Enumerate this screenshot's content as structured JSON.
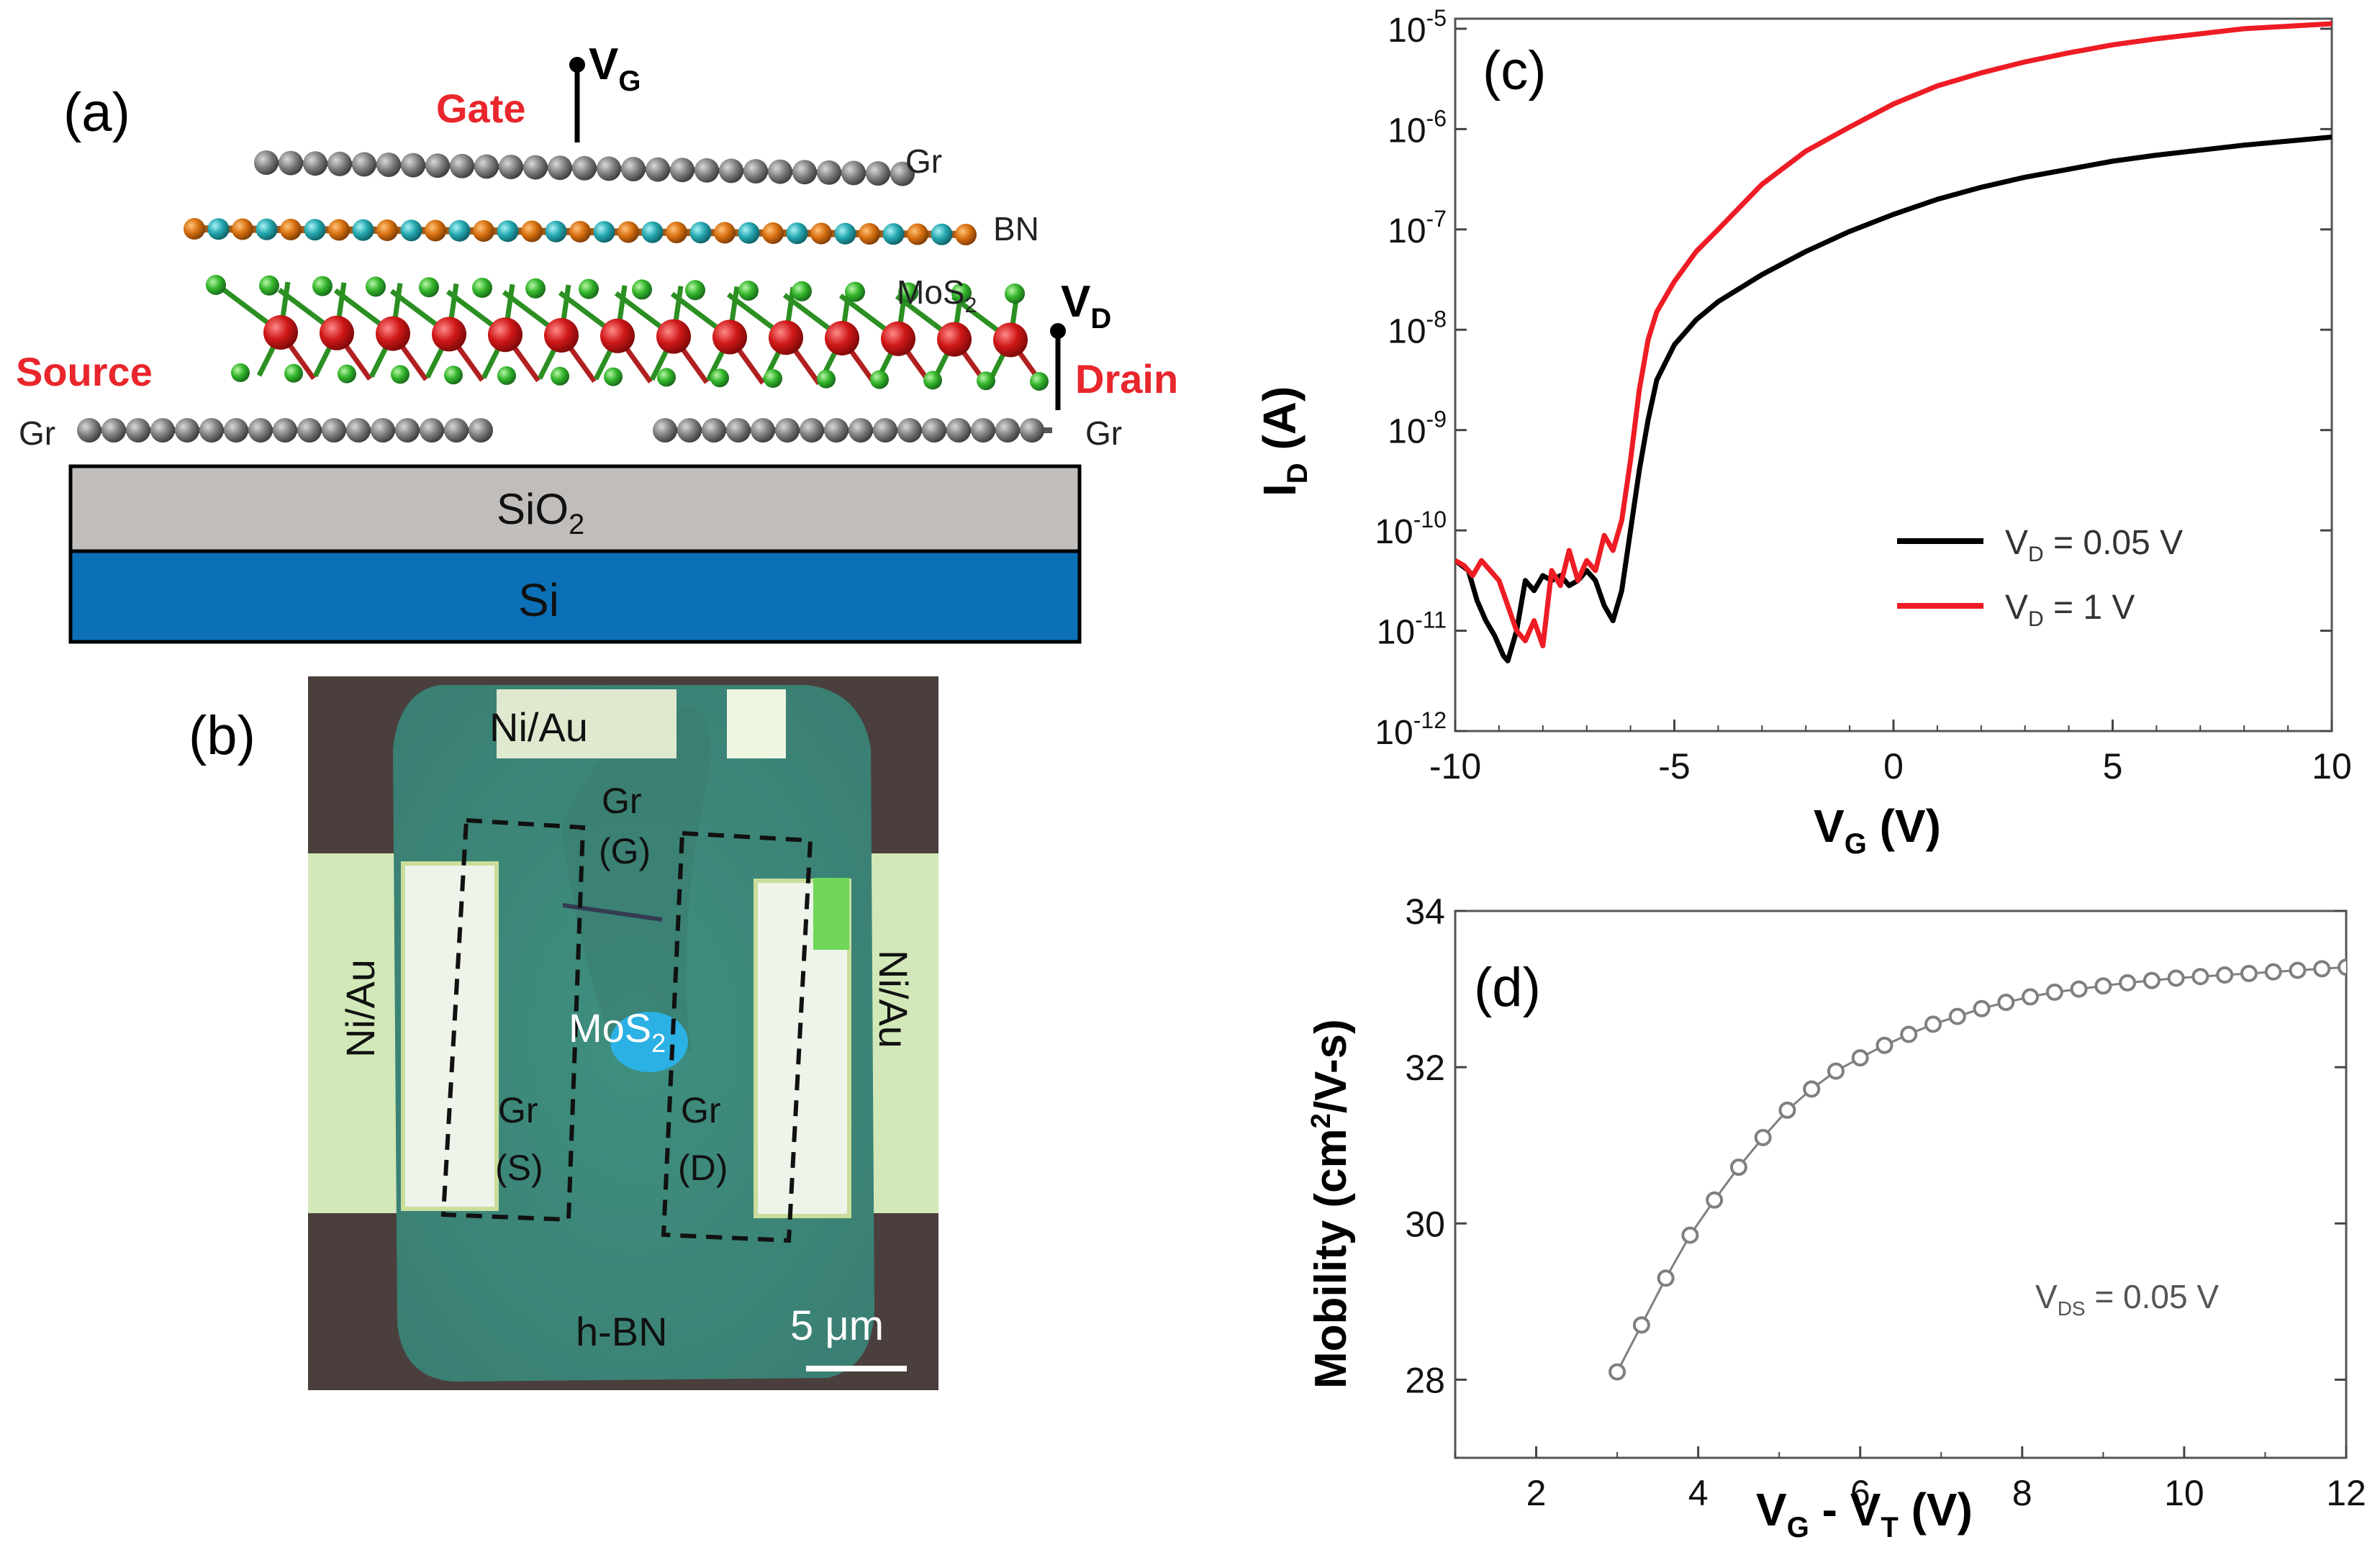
{
  "panel_labels": {
    "a": "(a)",
    "b": "(b)",
    "c": "(c)",
    "d": "(d)"
  },
  "panel_a": {
    "gate_label": "Gate",
    "vg_label": "V",
    "vg_sub": "G",
    "gr_top": "Gr",
    "bn": "BN",
    "mos2": "MoS",
    "mos2_sub": "2",
    "vd_label": "V",
    "vd_sub": "D",
    "source_label": "Source",
    "drain_label": "Drain",
    "gr_left": "Gr",
    "gr_right": "Gr",
    "sio2": "SiO",
    "sio2_sub": "2",
    "si": "Si",
    "colors": {
      "red_label": "#e8262b",
      "sio2": "#c0bdbb",
      "si": "#0b70b7",
      "mo": "#c41818",
      "s": "#2ea21f",
      "b": "#d0680f",
      "n": "#2aa0a8",
      "c": "#6d6d6d"
    }
  },
  "panel_b": {
    "niau_top": "Ni/Au",
    "niau_left": "Ni/Au",
    "niau_right": "Ni/Au",
    "gr_g_1": "Gr",
    "gr_g_2": "(G)",
    "gr_s_1": "Gr",
    "gr_s_2": "(S)",
    "gr_d_1": "Gr",
    "gr_d_2": "(D)",
    "mos2": "MoS",
    "mos2_sub": "2",
    "hbn": "h-BN",
    "scale": "5 μm"
  },
  "chart_data": [
    {
      "type": "line",
      "panel": "c",
      "title": "",
      "xlabel": "V_G (V)",
      "ylabel": "I_D (A)",
      "xlim": [
        -10,
        10
      ],
      "ylim_log10": [
        -12,
        -4.9
      ],
      "yscale": "log",
      "xticks": [
        -10,
        -5,
        0,
        5,
        10
      ],
      "xtick_labels": [
        "-10",
        "-5",
        "0",
        "5",
        "10"
      ],
      "yticks_exp": [
        -12,
        -11,
        -10,
        -9,
        -8,
        -7,
        -6,
        -5
      ],
      "ytick_base": "10",
      "ytick_exp_labels": [
        "-12",
        "-11",
        "-10",
        "-9",
        "-8",
        "-7",
        "-6",
        "-5"
      ],
      "legend_position": "center-right",
      "series": [
        {
          "name": "V_D = 0.05 V",
          "legend_main": "V",
          "legend_sub": "D",
          "legend_rest": " = 0.05 V",
          "color": "#000000",
          "x": [
            -10,
            -9.7,
            -9.5,
            -9.3,
            -9.1,
            -8.9,
            -8.8,
            -8.6,
            -8.4,
            -8.2,
            -8.0,
            -7.8,
            -7.6,
            -7.4,
            -7.2,
            -7.0,
            -6.8,
            -6.6,
            -6.4,
            -6.2,
            -6.0,
            -5.8,
            -5.6,
            -5.4,
            -5.0,
            -4.5,
            -4.0,
            -3.0,
            -2.0,
            -1.0,
            0,
            1,
            2,
            3,
            4,
            5,
            6,
            8,
            10
          ],
          "y_log10": [
            -10.3,
            -10.4,
            -10.7,
            -10.9,
            -11.05,
            -11.25,
            -11.3,
            -11.0,
            -10.5,
            -10.6,
            -10.45,
            -10.5,
            -10.45,
            -10.55,
            -10.5,
            -10.4,
            -10.5,
            -10.75,
            -10.9,
            -10.6,
            -10.0,
            -9.4,
            -8.9,
            -8.5,
            -8.15,
            -7.9,
            -7.72,
            -7.45,
            -7.22,
            -7.02,
            -6.85,
            -6.7,
            -6.58,
            -6.48,
            -6.4,
            -6.32,
            -6.26,
            -6.16,
            -6.08
          ]
        },
        {
          "name": "V_D = 1 V",
          "legend_main": "V",
          "legend_sub": "D",
          "legend_rest": " = 1 V",
          "color": "#ee1c24",
          "x": [
            -10,
            -9.8,
            -9.6,
            -9.4,
            -9.2,
            -9.0,
            -8.8,
            -8.6,
            -8.4,
            -8.2,
            -8.0,
            -7.8,
            -7.6,
            -7.4,
            -7.2,
            -7.0,
            -6.8,
            -6.6,
            -6.4,
            -6.2,
            -6.0,
            -5.8,
            -5.6,
            -5.4,
            -5.0,
            -4.5,
            -4.0,
            -3.0,
            -2.0,
            -1.0,
            0,
            1,
            2,
            3,
            4,
            5,
            6,
            8,
            10
          ],
          "y_log10": [
            -10.3,
            -10.35,
            -10.45,
            -10.3,
            -10.4,
            -10.5,
            -10.75,
            -11.0,
            -11.1,
            -10.9,
            -11.15,
            -10.4,
            -10.55,
            -10.2,
            -10.5,
            -10.3,
            -10.4,
            -10.05,
            -10.2,
            -9.9,
            -9.3,
            -8.6,
            -8.1,
            -7.82,
            -7.52,
            -7.22,
            -7.0,
            -6.55,
            -6.22,
            -5.98,
            -5.75,
            -5.57,
            -5.44,
            -5.33,
            -5.24,
            -5.16,
            -5.1,
            -5.0,
            -4.95
          ]
        }
      ]
    },
    {
      "type": "scatter",
      "panel": "d",
      "title": "",
      "xlabel": "V_G - V_T (V)",
      "ylabel": "Mobility (cm2/V-s)",
      "xlim": [
        1,
        12
      ],
      "ylim": [
        27,
        34
      ],
      "xticks": [
        2,
        4,
        6,
        8,
        10,
        12
      ],
      "yticks": [
        28,
        30,
        32,
        34
      ],
      "annotation_main": "V",
      "annotation_sub": "DS",
      "annotation_rest": " = 0.05 V",
      "marker": "open-circle",
      "color": "#7f7f7f",
      "x": [
        3.0,
        3.3,
        3.6,
        3.9,
        4.2,
        4.5,
        4.8,
        5.1,
        5.4,
        5.7,
        6.0,
        6.3,
        6.6,
        6.9,
        7.2,
        7.5,
        7.8,
        8.1,
        8.4,
        8.7,
        9.0,
        9.3,
        9.6,
        9.9,
        10.2,
        10.5,
        10.8,
        11.1,
        11.4,
        11.7,
        12.0
      ],
      "y": [
        28.1,
        28.7,
        29.3,
        29.85,
        30.3,
        30.72,
        31.1,
        31.45,
        31.72,
        31.95,
        32.12,
        32.28,
        32.42,
        32.55,
        32.65,
        32.75,
        32.83,
        32.9,
        32.96,
        33.0,
        33.04,
        33.08,
        33.11,
        33.14,
        33.16,
        33.18,
        33.2,
        33.22,
        33.24,
        33.26,
        33.28
      ]
    }
  ]
}
